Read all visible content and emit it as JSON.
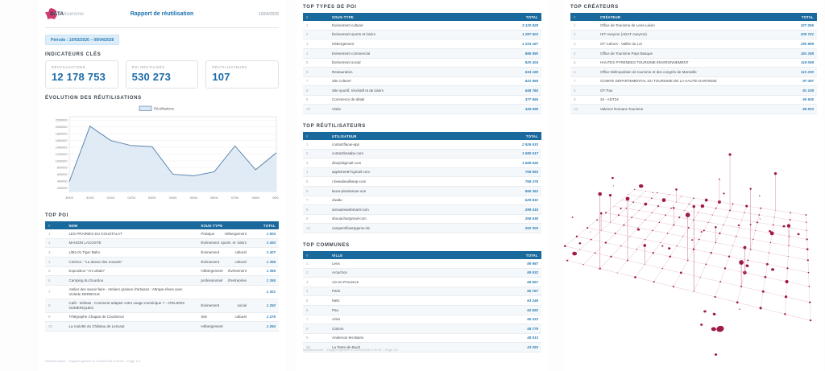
{
  "report": {
    "brand_bold": "DATA",
    "brand_light": "tourisme",
    "title": "Rapport de réutilisation",
    "date": "10/04/2026",
    "periode_label": "Période : 10/03/2026 – 09/04/2026",
    "footer_page1": "DATAtourisme – Rapport généré le 10/04/2026 à 09:46 – Page 1/3",
    "footer_page2": "DATAtourisme – Rapport généré le 10/04/2026 à 09:46 – Page 2/3"
  },
  "indicateurs": {
    "title": "INDICATEURS CLÉS",
    "cards": [
      {
        "label": "RÉUTILISATIONS",
        "value": "12 178 753"
      },
      {
        "label": "POI RÉUTILISÉS",
        "value": "530 273"
      },
      {
        "label": "RÉUTILISATEURS",
        "value": "107"
      }
    ]
  },
  "chart_data": {
    "type": "area",
    "title": "ÉVOLUTION DES RÉUTILISATIONS",
    "legend": "Réutilisations",
    "legend_position": "top-center",
    "x": [
      "30/03",
      "31/03",
      "01/04",
      "02/04",
      "03/04",
      "04/04",
      "05/04",
      "06/04",
      "07/04",
      "08/04",
      "09/04"
    ],
    "values": [
      390000,
      2020000,
      1600000,
      1450000,
      1420000,
      610000,
      560000,
      680000,
      1440000,
      740000,
      1240000
    ],
    "yticks": [
      200000,
      400000,
      600000,
      800000,
      1000000,
      1200000,
      1400000,
      1600000,
      1800000,
      2000000,
      2200000
    ],
    "ylim": [
      100000,
      2300000
    ],
    "grid": true,
    "line_color": "#5b87b0",
    "fill_color": "#dce8f3",
    "xlabel": "",
    "ylabel": ""
  },
  "tables": {
    "top_poi": {
      "title": "TOP POI",
      "headers": [
        "#",
        "NOM",
        "SOUS-TYPE",
        "TOTAL"
      ],
      "rows": [
        [
          "1",
          "LES PRAIRIES DU COUSTALAT",
          "Pratique Hébergement",
          "1 504"
        ],
        [
          "2",
          "MAISON LACOSTE",
          "Événement sports et loisirs",
          "1 493"
        ],
        [
          "3",
          "Ultra 01 Tiger Balm",
          "Événement culturel",
          "1 407"
        ],
        [
          "4",
          "Cinéma : \"La danse des renards\"",
          "Événement culturel",
          "1 398"
        ],
        [
          "5",
          "Exposition \"Art urbain\"",
          "Hébergement Événement",
          "1 359"
        ],
        [
          "6",
          "Camping du Dourdou",
          "professionnel d'entreprise",
          "1 355"
        ],
        [
          "7",
          "Atelier des savoir-faire - Ateliers graines d'artisans : Attrape-rêves avec Violette DERBOUX",
          "",
          "1 301"
        ],
        [
          "8",
          "Café - Débats : Comment adapter votre usage numérique ? - ATELIERS NUMERIQUES",
          "Événement social",
          "1 292"
        ],
        [
          "9",
          "Télégraphe Chappe de Courberon",
          "Site culturel",
          "1 275"
        ],
        [
          "10",
          "La roulotte du Château de Lescaut",
          "Hébergement",
          "1 264"
        ]
      ]
    },
    "top_types": {
      "title": "TOP TYPES DE POI",
      "headers": [
        "#",
        "SOUS-TYPE",
        "TOTAL"
      ],
      "rows": [
        [
          "1",
          "Événement culturel",
          "3 120 828"
        ],
        [
          "2",
          "Événement sports et loisirs",
          "1 287 602"
        ],
        [
          "3",
          "Hébergement",
          "1 223 167"
        ],
        [
          "4",
          "Événement commercial",
          "885 890"
        ],
        [
          "5",
          "Événement social",
          "820 404"
        ],
        [
          "6",
          "Restauration",
          "634 169"
        ],
        [
          "7",
          "Site culturel",
          "622 966"
        ],
        [
          "8",
          "Site sportif, récréatif et de loisirs",
          "548 784"
        ],
        [
          "9",
          "Commerce de détail",
          "377 656"
        ],
        [
          "10",
          "Visite",
          "349 599"
        ]
      ]
    },
    "top_reutilisateurs": {
      "title": "TOP RÉUTILISATEURS",
      "headers": [
        "#",
        "UTILISATEUR",
        "TOTAL"
      ],
      "rows": [
        [
          "1",
          "contactflaow-app",
          "2 926 633"
        ],
        [
          "2",
          "contactknaaby-com",
          "1 690 617"
        ],
        [
          "3",
          "dinejridigmail-com",
          "1 599 525"
        ],
        [
          "4",
          "appletree871gmail-com",
          "769 954"
        ],
        [
          "5",
          "r-beaulieuilliwap-com",
          "759 378"
        ],
        [
          "6",
          "laura-pintolamas-one",
          "656 352"
        ],
        [
          "7",
          "olwidu",
          "529 832"
        ],
        [
          "8",
          "annuairewebmarti-com",
          "299 415"
        ],
        [
          "9",
          "sbouacharigmail-com",
          "269 536"
        ],
        [
          "10",
          "campersflowrpgame-de",
          "250 000"
        ]
      ]
    },
    "top_communes": {
      "title": "TOP COMMUNES",
      "headers": [
        "#",
        "VILLE",
        "TOTAL"
      ],
      "rows": [
        [
          "1",
          "Lens",
          "89 987"
        ],
        [
          "2",
          "Arcachon",
          "69 932"
        ],
        [
          "3",
          "Aix-en-Provence",
          "66 657"
        ],
        [
          "4",
          "Paris",
          "65 757"
        ],
        [
          "5",
          "Metz",
          "63 246"
        ],
        [
          "6",
          "Pau",
          "62 692"
        ],
        [
          "7",
          "Arles",
          "55 433"
        ],
        [
          "8",
          "Cahors",
          "49 779"
        ],
        [
          "9",
          "Andernos-les-Bains",
          "48 513"
        ],
        [
          "10",
          "La Teste-de-Buch",
          "43 293"
        ]
      ]
    },
    "top_createurs": {
      "title": "TOP CRÉATEURS",
      "headers": [
        "#",
        "CRÉATEUR",
        "TOTAL"
      ],
      "rows": [
        [
          "1",
          "Office de Tourisme de Lens-Liévin",
          "327 055"
        ],
        [
          "2",
          "HIT Aveyron (ADAT Aveyron)",
          "208 721"
        ],
        [
          "3",
          "OT Cahors - Vallée du Lot",
          "190 899"
        ],
        [
          "4",
          "Office de Tourisme Pays Basque",
          "182 258"
        ],
        [
          "5",
          "HAUTES PYRENEES TOURISME ENVIRONNEMENT",
          "118 059"
        ],
        [
          "6",
          "Office Métropolitain de tourisme et des congrès de Marseille",
          "110 230"
        ],
        [
          "7",
          "COMITE DEPARTEMENTAL DU TOURISME DE LA HAUTE-GARONNE",
          "97 497"
        ],
        [
          "8",
          "OT Pau",
          "91 108"
        ],
        [
          "9",
          "34 - ADT34",
          "90 505"
        ],
        [
          "10",
          "Valence Romans Tourisme",
          "88 833"
        ]
      ]
    }
  },
  "scatter": {
    "dot_color": "#9e1b42",
    "stem_color": "#d492a7",
    "grid_color": "#edccd6"
  }
}
